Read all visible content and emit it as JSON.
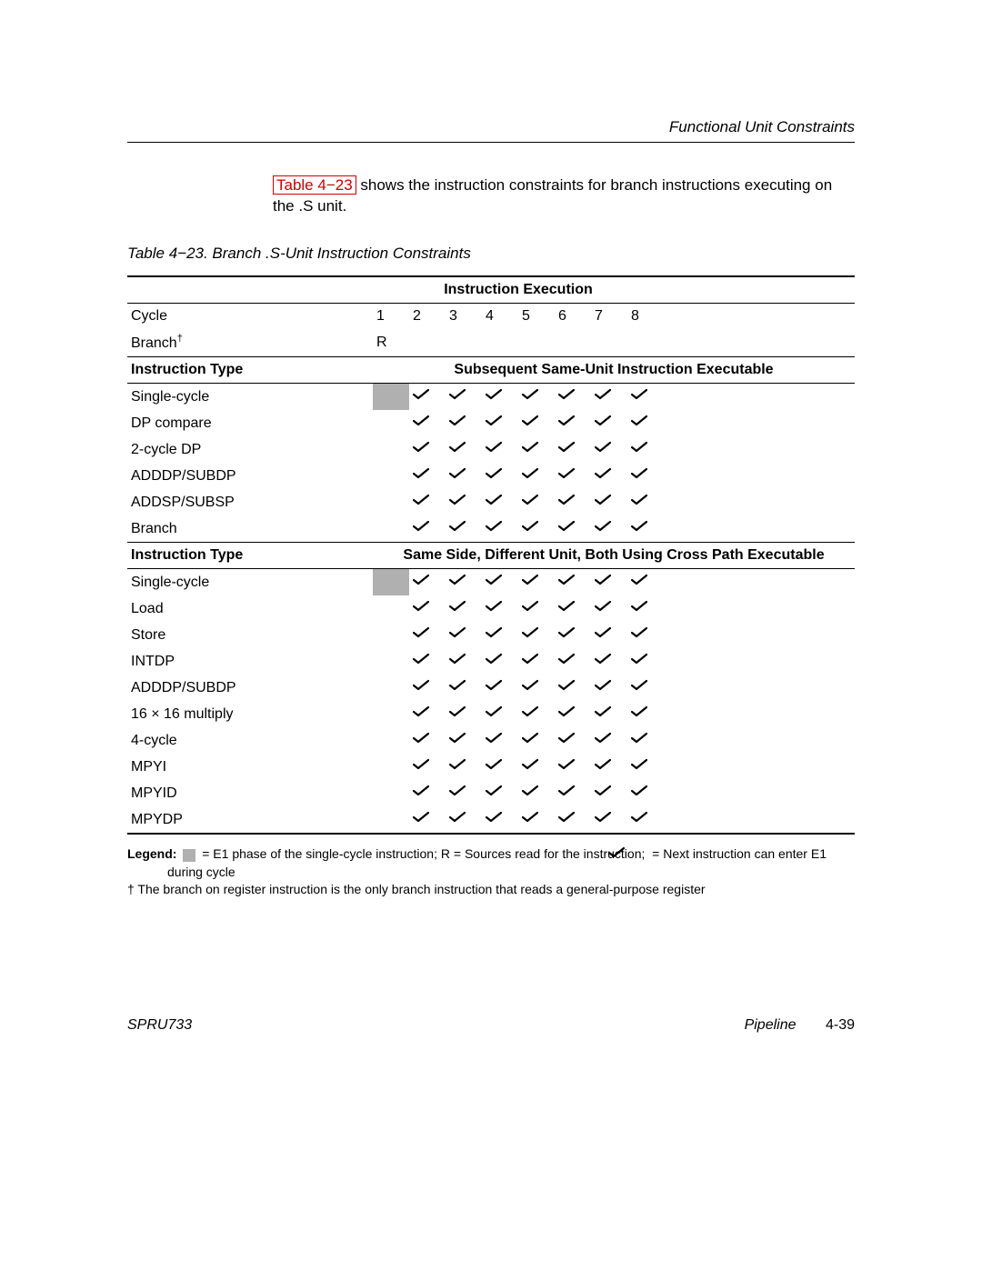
{
  "header": {
    "section_title": "Functional Unit Constraints"
  },
  "intro": {
    "link_text": "Table 4−23",
    "rest": " shows the instruction constraints for branch instructions executing on the .S unit."
  },
  "caption": "Table 4−23.   Branch .S-Unit Instruction Constraints",
  "colors": {
    "shaded": "#b0b0b0",
    "link": "#cc0000",
    "text": "#000000",
    "rule": "#000000"
  },
  "table": {
    "exec_header": "Instruction Execution",
    "cycle_label": "Cycle",
    "cycles": [
      "1",
      "2",
      "3",
      "4",
      "5",
      "6",
      "7",
      "8"
    ],
    "branch_row": {
      "label": "Branch",
      "dagger": "†",
      "col1": "R"
    },
    "section1": {
      "left_header": "Instruction Type",
      "right_header": "Subsequent Same-Unit Instruction Executable",
      "rows": [
        {
          "label": "Single-cycle",
          "shaded1": true,
          "checks": [
            false,
            true,
            true,
            true,
            true,
            true,
            true,
            true
          ]
        },
        {
          "label": "DP compare",
          "shaded1": false,
          "checks": [
            false,
            true,
            true,
            true,
            true,
            true,
            true,
            true
          ]
        },
        {
          "label": "2-cycle DP",
          "shaded1": false,
          "checks": [
            false,
            true,
            true,
            true,
            true,
            true,
            true,
            true
          ]
        },
        {
          "label": "ADDDP/SUBDP",
          "shaded1": false,
          "checks": [
            false,
            true,
            true,
            true,
            true,
            true,
            true,
            true
          ]
        },
        {
          "label": "ADDSP/SUBSP",
          "shaded1": false,
          "checks": [
            false,
            true,
            true,
            true,
            true,
            true,
            true,
            true
          ]
        },
        {
          "label": "Branch",
          "shaded1": false,
          "checks": [
            false,
            true,
            true,
            true,
            true,
            true,
            true,
            true
          ]
        }
      ]
    },
    "section2": {
      "left_header": "Instruction Type",
      "right_header": "Same Side, Different Unit, Both Using Cross Path Executable",
      "rows": [
        {
          "label": "Single-cycle",
          "shaded1": true,
          "checks": [
            false,
            true,
            true,
            true,
            true,
            true,
            true,
            true
          ]
        },
        {
          "label": "Load",
          "shaded1": false,
          "checks": [
            false,
            true,
            true,
            true,
            true,
            true,
            true,
            true
          ]
        },
        {
          "label": "Store",
          "shaded1": false,
          "checks": [
            false,
            true,
            true,
            true,
            true,
            true,
            true,
            true
          ]
        },
        {
          "label": "INTDP",
          "shaded1": false,
          "checks": [
            false,
            true,
            true,
            true,
            true,
            true,
            true,
            true
          ]
        },
        {
          "label": "ADDDP/SUBDP",
          "shaded1": false,
          "checks": [
            false,
            true,
            true,
            true,
            true,
            true,
            true,
            true
          ]
        },
        {
          "label": "16 × 16 multiply",
          "shaded1": false,
          "checks": [
            false,
            true,
            true,
            true,
            true,
            true,
            true,
            true
          ]
        },
        {
          "label": "4-cycle",
          "shaded1": false,
          "checks": [
            false,
            true,
            true,
            true,
            true,
            true,
            true,
            true
          ]
        },
        {
          "label": "MPYI",
          "shaded1": false,
          "checks": [
            false,
            true,
            true,
            true,
            true,
            true,
            true,
            true
          ]
        },
        {
          "label": "MPYID",
          "shaded1": false,
          "checks": [
            false,
            true,
            true,
            true,
            true,
            true,
            true,
            true
          ]
        },
        {
          "label": "MPYDP",
          "shaded1": false,
          "checks": [
            false,
            true,
            true,
            true,
            true,
            true,
            true,
            true
          ]
        }
      ]
    }
  },
  "legend": {
    "label": "Legend:",
    "part1": " = E1 phase of the single-cycle instruction; R = Sources read for the instruction; ",
    "part2": " = Next instruction can enter E1 during cycle",
    "dagger_note": "† The branch on register instruction is the only branch instruction that reads a general-purpose register"
  },
  "footer": {
    "doc_id": "SPRU733",
    "chapter": "Pipeline",
    "page": "4-39"
  }
}
